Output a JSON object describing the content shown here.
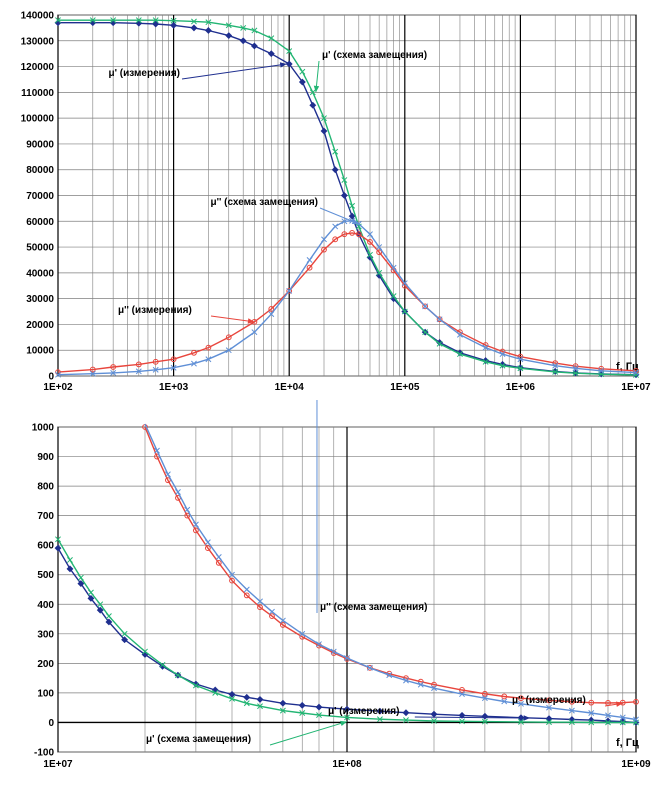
{
  "colors": {
    "mu1_meas": "#1f2f8f",
    "mu1_model": "#22b573",
    "mu2_meas": "#e8453c",
    "mu2_model": "#5f8fd6",
    "grid": "#7f7f7f",
    "grid_major": "#000000"
  },
  "chart_data": [
    {
      "type": "line",
      "xscale": "log",
      "xlim": [
        100,
        10000000
      ],
      "ylim": [
        0,
        140000
      ],
      "ytick_step": 10000,
      "x_tick_labels": [
        "1E+02",
        "1E+03",
        "1E+04",
        "1E+05",
        "1E+06",
        "1E+07"
      ],
      "y_tick_labels": [
        "0",
        "10000",
        "20000",
        "30000",
        "40000",
        "50000",
        "60000",
        "70000",
        "80000",
        "90000",
        "100000",
        "110000",
        "120000",
        "130000",
        "140000"
      ],
      "x_unit": "f, Гц",
      "grid": true,
      "series": [
        {
          "name": "μ' (измерения)",
          "color_key": "mu1_meas",
          "marker": "diamond",
          "x": [
            100,
            200,
            300,
            500,
            700,
            1000,
            1500,
            2000,
            3000,
            4000,
            5000,
            7000,
            10000,
            13000,
            16000,
            20000,
            25000,
            30000,
            35000,
            40000,
            50000,
            60000,
            80000,
            100000,
            150000,
            200000,
            300000,
            500000,
            700000,
            1000000,
            2000000,
            3000000,
            5000000,
            10000000
          ],
          "y": [
            137000,
            137000,
            137000,
            136800,
            136500,
            136000,
            135000,
            134000,
            132000,
            130000,
            128000,
            125000,
            121000,
            114000,
            105000,
            95000,
            80000,
            70000,
            62000,
            55000,
            46000,
            39000,
            30000,
            25000,
            17000,
            13000,
            9000,
            6000,
            4500,
            3200,
            1800,
            1200,
            800,
            500
          ]
        },
        {
          "name": "μ' (схема замещения)",
          "color_key": "mu1_model",
          "marker": "x",
          "x": [
            100,
            200,
            300,
            500,
            700,
            1000,
            1500,
            2000,
            3000,
            4000,
            5000,
            7000,
            10000,
            13000,
            16000,
            20000,
            25000,
            30000,
            35000,
            40000,
            50000,
            60000,
            80000,
            100000,
            150000,
            200000,
            300000,
            500000,
            700000,
            1000000,
            2000000,
            3000000,
            5000000,
            10000000
          ],
          "y": [
            138000,
            138000,
            138000,
            138000,
            138000,
            137800,
            137500,
            137200,
            136000,
            135000,
            134000,
            131000,
            126000,
            118000,
            110000,
            100000,
            87000,
            76000,
            66000,
            58000,
            47000,
            40000,
            31000,
            25000,
            17000,
            12500,
            8500,
            5500,
            4000,
            3000,
            1600,
            1100,
            700,
            400
          ]
        },
        {
          "name": "μ'' (измерения)",
          "color_key": "mu2_meas",
          "marker": "circle",
          "x": [
            100,
            200,
            300,
            500,
            700,
            1000,
            1500,
            2000,
            3000,
            5000,
            7000,
            10000,
            15000,
            20000,
            25000,
            30000,
            35000,
            40000,
            50000,
            60000,
            80000,
            100000,
            150000,
            200000,
            300000,
            500000,
            700000,
            1000000,
            2000000,
            3000000,
            5000000,
            10000000
          ],
          "y": [
            1500,
            2500,
            3500,
            4500,
            5500,
            6500,
            9000,
            11000,
            15000,
            21000,
            26000,
            33000,
            42000,
            49000,
            53000,
            55000,
            55500,
            55000,
            52000,
            48000,
            41000,
            35000,
            27000,
            22000,
            17000,
            12000,
            9500,
            7500,
            5000,
            3800,
            2800,
            2000
          ]
        },
        {
          "name": "μ'' (схема замещения)",
          "color_key": "mu2_model",
          "marker": "x",
          "x": [
            100,
            200,
            300,
            500,
            700,
            1000,
            1500,
            2000,
            3000,
            5000,
            7000,
            10000,
            15000,
            20000,
            25000,
            30000,
            35000,
            40000,
            50000,
            60000,
            80000,
            100000,
            150000,
            200000,
            300000,
            500000,
            700000,
            1000000,
            2000000,
            3000000,
            5000000,
            10000000
          ],
          "y": [
            500,
            900,
            1200,
            1800,
            2400,
            3200,
            4800,
            6500,
            10000,
            17000,
            24000,
            33000,
            45000,
            53000,
            58000,
            60000,
            60200,
            59000,
            55000,
            50000,
            42000,
            36000,
            27000,
            22000,
            16000,
            11000,
            8500,
            6500,
            4000,
            3000,
            2000,
            1300
          ]
        }
      ],
      "annotations": [
        {
          "text": "μ' (измерения)",
          "series_ref": 0,
          "target": [
            9500,
            121000
          ]
        },
        {
          "text": "μ' (схема замещения)",
          "series_ref": 1,
          "target": [
            17000,
            110000
          ]
        },
        {
          "text": "μ'' (схема замещения)",
          "series_ref": 3,
          "target": [
            40000,
            59000
          ]
        },
        {
          "text": "μ'' (измерения)",
          "series_ref": 2,
          "target": [
            5000,
            21000
          ]
        }
      ]
    },
    {
      "type": "line",
      "xscale": "log",
      "xlim": [
        10000000,
        1000000000
      ],
      "ylim": [
        -100,
        1000
      ],
      "ytick_step": 100,
      "x_tick_labels": [
        "1E+07",
        "1E+08",
        "1E+09"
      ],
      "y_tick_labels": [
        "-100",
        "0",
        "100",
        "200",
        "300",
        "400",
        "500",
        "600",
        "700",
        "800",
        "900",
        "1000"
      ],
      "x_unit": "f, Гц",
      "grid": true,
      "series": [
        {
          "name": "μ' (измерения)",
          "color_key": "mu1_meas",
          "marker": "diamond",
          "x": [
            10000000,
            11000000,
            12000000,
            13000000,
            14000000,
            15000000,
            17000000,
            20000000,
            23000000,
            26000000,
            30000000,
            35000000,
            40000000,
            45000000,
            50000000,
            60000000,
            70000000,
            80000000,
            100000000,
            130000000,
            160000000,
            200000000,
            250000000,
            300000000,
            400000000,
            500000000,
            600000000,
            700000000,
            800000000,
            900000000,
            1000000000
          ],
          "y": [
            590,
            520,
            470,
            420,
            380,
            340,
            280,
            230,
            190,
            160,
            130,
            110,
            95,
            85,
            78,
            65,
            58,
            52,
            45,
            38,
            33,
            28,
            24,
            21,
            16,
            13,
            10,
            8,
            5,
            3,
            0
          ]
        },
        {
          "name": "μ' (схема замещения)",
          "color_key": "mu1_model",
          "marker": "x",
          "x": [
            10000000,
            11000000,
            12000000,
            13000000,
            14000000,
            15000000,
            17000000,
            20000000,
            23000000,
            26000000,
            30000000,
            35000000,
            40000000,
            45000000,
            50000000,
            60000000,
            70000000,
            80000000,
            100000000,
            130000000,
            160000000,
            200000000,
            250000000,
            300000000,
            400000000,
            500000000,
            600000000,
            700000000,
            800000000,
            900000000,
            1000000000
          ],
          "y": [
            620,
            550,
            490,
            440,
            400,
            360,
            300,
            240,
            195,
            160,
            125,
            100,
            80,
            65,
            55,
            40,
            32,
            25,
            17,
            11,
            8,
            5,
            4,
            3,
            2,
            1,
            1,
            0,
            0,
            0,
            0
          ]
        },
        {
          "name": "μ'' (измерения)",
          "color_key": "mu2_meas",
          "marker": "circle",
          "x": [
            20000000,
            22000000,
            24000000,
            26000000,
            28000000,
            30000000,
            33000000,
            36000000,
            40000000,
            45000000,
            50000000,
            55000000,
            60000000,
            70000000,
            80000000,
            90000000,
            100000000,
            120000000,
            140000000,
            160000000,
            180000000,
            200000000,
            250000000,
            300000000,
            350000000,
            400000000,
            500000000,
            600000000,
            700000000,
            800000000,
            900000000,
            1000000000
          ],
          "y": [
            1000,
            900,
            820,
            760,
            700,
            650,
            590,
            540,
            480,
            430,
            390,
            360,
            330,
            290,
            260,
            235,
            215,
            185,
            165,
            150,
            138,
            128,
            110,
            97,
            88,
            82,
            75,
            70,
            67,
            66,
            67,
            70
          ]
        },
        {
          "name": "μ'' (схема замещения)",
          "color_key": "mu2_model",
          "marker": "x",
          "x": [
            20000000,
            22000000,
            24000000,
            26000000,
            28000000,
            30000000,
            33000000,
            36000000,
            40000000,
            45000000,
            50000000,
            55000000,
            60000000,
            70000000,
            80000000,
            90000000,
            100000000,
            120000000,
            140000000,
            160000000,
            180000000,
            200000000,
            250000000,
            300000000,
            350000000,
            400000000,
            500000000,
            600000000,
            700000000,
            800000000,
            900000000,
            1000000000
          ],
          "y": [
            1010,
            920,
            840,
            780,
            720,
            670,
            610,
            560,
            500,
            450,
            410,
            375,
            345,
            300,
            265,
            240,
            218,
            185,
            160,
            142,
            128,
            116,
            96,
            82,
            71,
            63,
            50,
            40,
            32,
            24,
            17,
            10
          ]
        }
      ],
      "annotations": [
        {
          "text": "μ'' (схема замещения)",
          "series_ref": 3,
          "target": [
            65000000,
            400000
          ]
        },
        {
          "text": "μ'' (измерения)",
          "series_ref": 2,
          "target": [
            900000000,
            65
          ]
        },
        {
          "text": "μ' (измерения)",
          "series_ref": 0,
          "target": [
            430000000,
            15
          ]
        },
        {
          "text": "μ' (схема замещения)",
          "series_ref": 1,
          "target": [
            100000000,
            3
          ]
        }
      ]
    }
  ]
}
